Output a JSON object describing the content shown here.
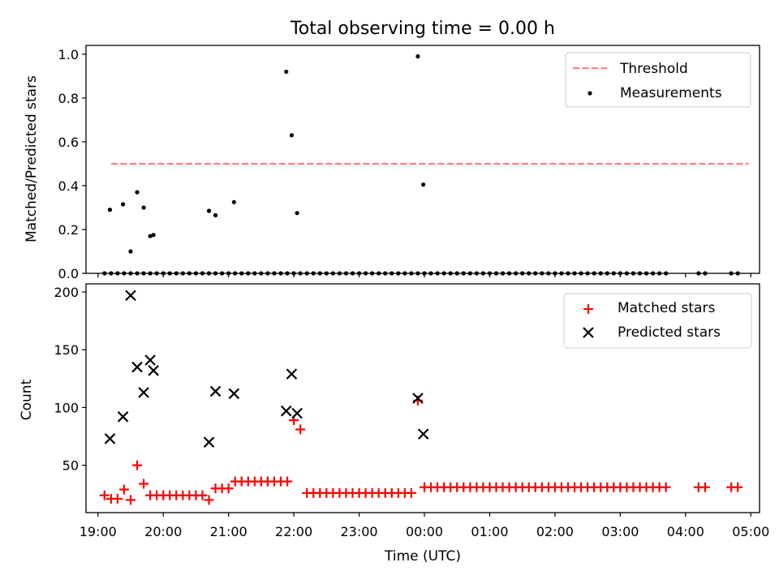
{
  "chart_data": [
    {
      "type": "scatter",
      "title": "Total observing time = 0.00 h",
      "xlabel": "",
      "ylabel": "Matched/Predicted stars",
      "xlim": [
        "18:49",
        "05:08"
      ],
      "ylim": [
        0,
        1.04
      ],
      "yticks": [
        "0.0",
        "0.2",
        "0.4",
        "0.6",
        "0.8",
        "1.0"
      ],
      "legend": {
        "position": "top-right",
        "entries": [
          "Threshold",
          "Measurements"
        ]
      },
      "threshold": {
        "name": "Threshold",
        "value": 0.5,
        "x_start": "19:12",
        "x_end": "04:58",
        "color": "#ff7f7f",
        "style": "dashed"
      },
      "series": [
        {
          "name": "Measurements",
          "color": "#000000",
          "x": [
            "19:06",
            "19:12",
            "19:18",
            "19:24",
            "19:30",
            "19:36",
            "19:42",
            "19:48",
            "19:54",
            "20:00",
            "20:06",
            "20:12",
            "20:18",
            "20:24",
            "20:30",
            "20:36",
            "20:42",
            "20:48",
            "20:54",
            "21:00",
            "21:06",
            "21:12",
            "21:18",
            "21:24",
            "21:30",
            "21:36",
            "21:42",
            "21:48",
            "21:54",
            "22:00",
            "22:06",
            "22:12",
            "22:18",
            "22:24",
            "22:30",
            "22:36",
            "22:42",
            "22:48",
            "22:54",
            "23:00",
            "23:06",
            "23:12",
            "23:18",
            "23:24",
            "23:30",
            "23:36",
            "23:42",
            "23:48",
            "23:54",
            "00:00",
            "00:06",
            "00:12",
            "00:18",
            "00:24",
            "00:30",
            "00:36",
            "00:42",
            "00:48",
            "00:54",
            "01:00",
            "01:06",
            "01:12",
            "01:18",
            "01:24",
            "01:30",
            "01:36",
            "01:42",
            "01:48",
            "01:54",
            "02:00",
            "02:06",
            "02:12",
            "02:18",
            "02:24",
            "02:30",
            "02:36",
            "02:42",
            "02:48",
            "02:54",
            "03:00",
            "03:06",
            "03:12",
            "03:18",
            "03:24",
            "03:30",
            "03:36",
            "03:42",
            "04:12",
            "04:18",
            "04:42",
            "04:48",
            "19:11",
            "19:23",
            "19:30",
            "19:36",
            "19:42",
            "19:48",
            "19:51",
            "20:42",
            "20:48",
            "21:05",
            "21:53",
            "21:58",
            "22:03",
            "23:54",
            "23:59"
          ],
          "y": [
            0,
            0,
            0,
            0,
            0,
            0,
            0,
            0,
            0,
            0,
            0,
            0,
            0,
            0,
            0,
            0,
            0,
            0,
            0,
            0,
            0,
            0,
            0,
            0,
            0,
            0,
            0,
            0,
            0,
            0,
            0,
            0,
            0,
            0,
            0,
            0,
            0,
            0,
            0,
            0,
            0,
            0,
            0,
            0,
            0,
            0,
            0,
            0,
            0,
            0,
            0,
            0,
            0,
            0,
            0,
            0,
            0,
            0,
            0,
            0,
            0,
            0,
            0,
            0,
            0,
            0,
            0,
            0,
            0,
            0,
            0,
            0,
            0,
            0,
            0,
            0,
            0,
            0,
            0,
            0,
            0,
            0,
            0,
            0,
            0,
            0,
            0,
            0,
            0,
            0,
            0,
            0.29,
            0.315,
            0.1,
            0.37,
            0.3,
            0.17,
            0.175,
            0.285,
            0.265,
            0.325,
            0.92,
            0.63,
            0.275,
            0.99,
            0.405
          ]
        }
      ]
    },
    {
      "type": "scatter",
      "title": "",
      "xlabel": "Time (UTC)",
      "ylabel": "Count",
      "xlim": [
        "18:49",
        "05:08"
      ],
      "ylim": [
        9,
        207
      ],
      "yticks": [
        "50",
        "100",
        "150",
        "200"
      ],
      "xticks": [
        "19:00",
        "20:00",
        "21:00",
        "22:00",
        "23:00",
        "00:00",
        "01:00",
        "02:00",
        "03:00",
        "04:00",
        "05:00"
      ],
      "legend": {
        "position": "top-right",
        "entries": [
          "Matched stars",
          "Predicted stars"
        ]
      },
      "series": [
        {
          "name": "Matched stars",
          "color": "#ff0000",
          "marker": "+",
          "x": [
            "19:06",
            "19:12",
            "19:18",
            "19:24",
            "19:30",
            "19:36",
            "19:42",
            "19:48",
            "19:54",
            "20:00",
            "20:06",
            "20:12",
            "20:18",
            "20:24",
            "20:30",
            "20:36",
            "20:42",
            "20:48",
            "20:54",
            "21:00",
            "21:06",
            "21:12",
            "21:18",
            "21:24",
            "21:30",
            "21:36",
            "21:42",
            "21:48",
            "21:54",
            "22:00",
            "22:06",
            "22:12",
            "22:18",
            "22:24",
            "22:30",
            "22:36",
            "22:42",
            "22:48",
            "22:54",
            "23:00",
            "23:06",
            "23:12",
            "23:18",
            "23:24",
            "23:30",
            "23:36",
            "23:42",
            "23:48",
            "23:54",
            "00:00",
            "00:06",
            "00:12",
            "00:18",
            "00:24",
            "00:30",
            "00:36",
            "00:42",
            "00:48",
            "00:54",
            "01:00",
            "01:06",
            "01:12",
            "01:18",
            "01:24",
            "01:30",
            "01:36",
            "01:42",
            "01:48",
            "01:54",
            "02:00",
            "02:06",
            "02:12",
            "02:18",
            "02:24",
            "02:30",
            "02:36",
            "02:42",
            "02:48",
            "02:54",
            "03:00",
            "03:06",
            "03:12",
            "03:18",
            "03:24",
            "03:30",
            "03:36",
            "03:42",
            "04:12",
            "04:18",
            "04:42",
            "04:48"
          ],
          "values": [
            24,
            21,
            21,
            29,
            20,
            50,
            34,
            24,
            24,
            24,
            24,
            24,
            24,
            24,
            24,
            24,
            20,
            30,
            30,
            30,
            36,
            36,
            36,
            36,
            36,
            36,
            36,
            36,
            36,
            89,
            81,
            26,
            26,
            26,
            26,
            26,
            26,
            26,
            26,
            26,
            26,
            26,
            26,
            26,
            26,
            26,
            26,
            26,
            106,
            31,
            31,
            31,
            31,
            31,
            31,
            31,
            31,
            31,
            31,
            31,
            31,
            31,
            31,
            31,
            31,
            31,
            31,
            31,
            31,
            31,
            31,
            31,
            31,
            31,
            31,
            31,
            31,
            31,
            31,
            31,
            31,
            31,
            31,
            31,
            31,
            31,
            31,
            31,
            31,
            31,
            31
          ]
        },
        {
          "name": "Predicted stars",
          "color": "#000000",
          "marker": "x",
          "x": [
            "19:11",
            "19:23",
            "19:30",
            "19:36",
            "19:42",
            "19:48",
            "19:51",
            "20:42",
            "20:48",
            "21:05",
            "21:53",
            "21:58",
            "22:03",
            "23:54",
            "23:59"
          ],
          "values": [
            73,
            92,
            197,
            135,
            113,
            141,
            132,
            70,
            114,
            112,
            97,
            129,
            95,
            108,
            77
          ]
        }
      ]
    }
  ]
}
